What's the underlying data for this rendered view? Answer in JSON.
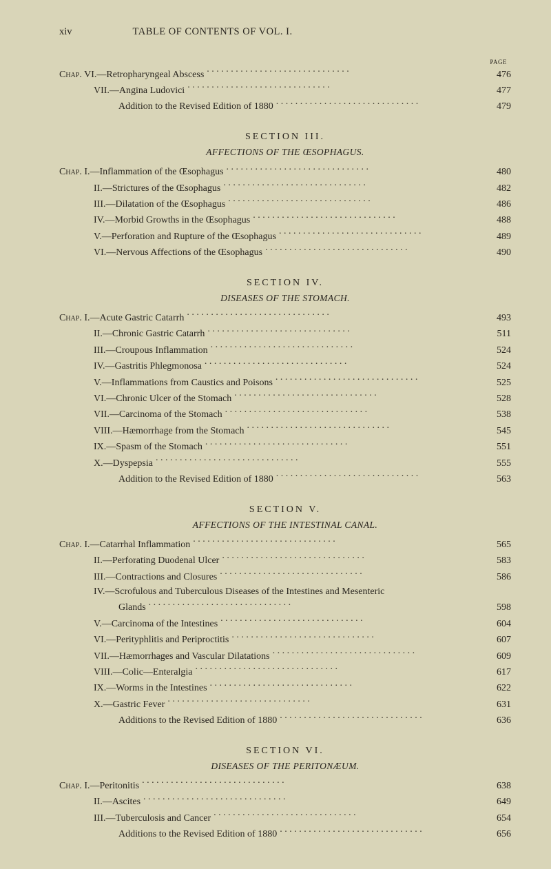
{
  "header": {
    "page_num_left": "xiv",
    "title": "TABLE OF CONTENTS OF VOL. I.",
    "col_header": "PAGE"
  },
  "preEntries": [
    {
      "label": "Chap. VI.—Retropharyngeal Abscess",
      "page": "476",
      "cls": ""
    },
    {
      "label": "VII.—Angina Ludovici",
      "page": "477",
      "cls": "indent1"
    },
    {
      "label": "Addition to the Revised Edition of 1880",
      "page": "479",
      "cls": "indent2"
    }
  ],
  "sections": [
    {
      "title": "SECTION III.",
      "sub": "AFFECTIONS OF THE ŒSOPHAGUS.",
      "entries": [
        {
          "label": "Chap. I.—Inflammation of the Œsophagus",
          "page": "480",
          "cls": ""
        },
        {
          "label": "II.—Strictures of the Œsophagus",
          "page": "482",
          "cls": "indent1"
        },
        {
          "label": "III.—Dilatation of the Œsophagus",
          "page": "486",
          "cls": "indent1"
        },
        {
          "label": "IV.—Morbid Growths in the Œsophagus",
          "page": "488",
          "cls": "indent1"
        },
        {
          "label": "V.—Perforation and Rupture of the Œsophagus",
          "page": "489",
          "cls": "indent1"
        },
        {
          "label": "VI.—Nervous Affections of the Œsophagus",
          "page": "490",
          "cls": "indent1"
        }
      ]
    },
    {
      "title": "SECTION IV.",
      "sub": "DISEASES OF THE STOMACH.",
      "entries": [
        {
          "label": "Chap. I.—Acute Gastric Catarrh",
          "page": "493",
          "cls": ""
        },
        {
          "label": "II.—Chronic Gastric Catarrh",
          "page": "511",
          "cls": "indent1"
        },
        {
          "label": "III.—Croupous Inflammation",
          "page": "524",
          "cls": "indent1"
        },
        {
          "label": "IV.—Gastritis Phlegmonosa",
          "page": "524",
          "cls": "indent1"
        },
        {
          "label": "V.—Inflammations from Caustics and Poisons",
          "page": "525",
          "cls": "indent1"
        },
        {
          "label": "VI.—Chronic Ulcer of the Stomach",
          "page": "528",
          "cls": "indent1"
        },
        {
          "label": "VII.—Carcinoma of the Stomach",
          "page": "538",
          "cls": "indent1"
        },
        {
          "label": "VIII.—Hæmorrhage from the Stomach",
          "page": "545",
          "cls": "indent1"
        },
        {
          "label": "IX.—Spasm of the Stomach",
          "page": "551",
          "cls": "indent1"
        },
        {
          "label": "X.—Dyspepsia",
          "page": "555",
          "cls": "indent1"
        },
        {
          "label": "Addition to the Revised Edition of 1880",
          "page": "563",
          "cls": "indent2"
        }
      ]
    },
    {
      "title": "SECTION V.",
      "sub": "AFFECTIONS OF THE INTESTINAL CANAL.",
      "entries": [
        {
          "label": "Chap. I.—Catarrhal Inflammation",
          "page": "565",
          "cls": ""
        },
        {
          "label": "II.—Perforating Duodenal Ulcer",
          "page": "583",
          "cls": "indent1"
        },
        {
          "label": "III.—Contractions and Closures",
          "page": "586",
          "cls": "indent1"
        },
        {
          "label": "IV.—Scrofulous and Tuberculous Diseases of the Intestines and Mesenteric",
          "page": "",
          "cls": "indent1",
          "noleader": true
        },
        {
          "label": "Glands",
          "page": "598",
          "cls": "indent2"
        },
        {
          "label": "V.—Carcinoma of the Intestines",
          "page": "604",
          "cls": "indent1"
        },
        {
          "label": "VI.—Perityphlitis and Periproctitis",
          "page": "607",
          "cls": "indent1"
        },
        {
          "label": "VII.—Hæmorrhages and Vascular Dilatations",
          "page": "609",
          "cls": "indent1"
        },
        {
          "label": "VIII.—Colic—Enteralgia",
          "page": "617",
          "cls": "indent1"
        },
        {
          "label": "IX.—Worms in the Intestines",
          "page": "622",
          "cls": "indent1"
        },
        {
          "label": "X.—Gastric Fever",
          "page": "631",
          "cls": "indent1"
        },
        {
          "label": "Additions to the Revised Edition of 1880",
          "page": "636",
          "cls": "indent2"
        }
      ]
    },
    {
      "title": "SECTION VI.",
      "sub": "DISEASES OF THE PERITONÆUM.",
      "entries": [
        {
          "label": "Chap. I.—Peritonitis",
          "page": "638",
          "cls": ""
        },
        {
          "label": "II.—Ascites",
          "page": "649",
          "cls": "indent1"
        },
        {
          "label": "III.—Tuberculosis and Cancer",
          "page": "654",
          "cls": "indent1"
        },
        {
          "label": "Additions to the Revised Edition of 1880",
          "page": "656",
          "cls": "indent2"
        }
      ]
    }
  ]
}
